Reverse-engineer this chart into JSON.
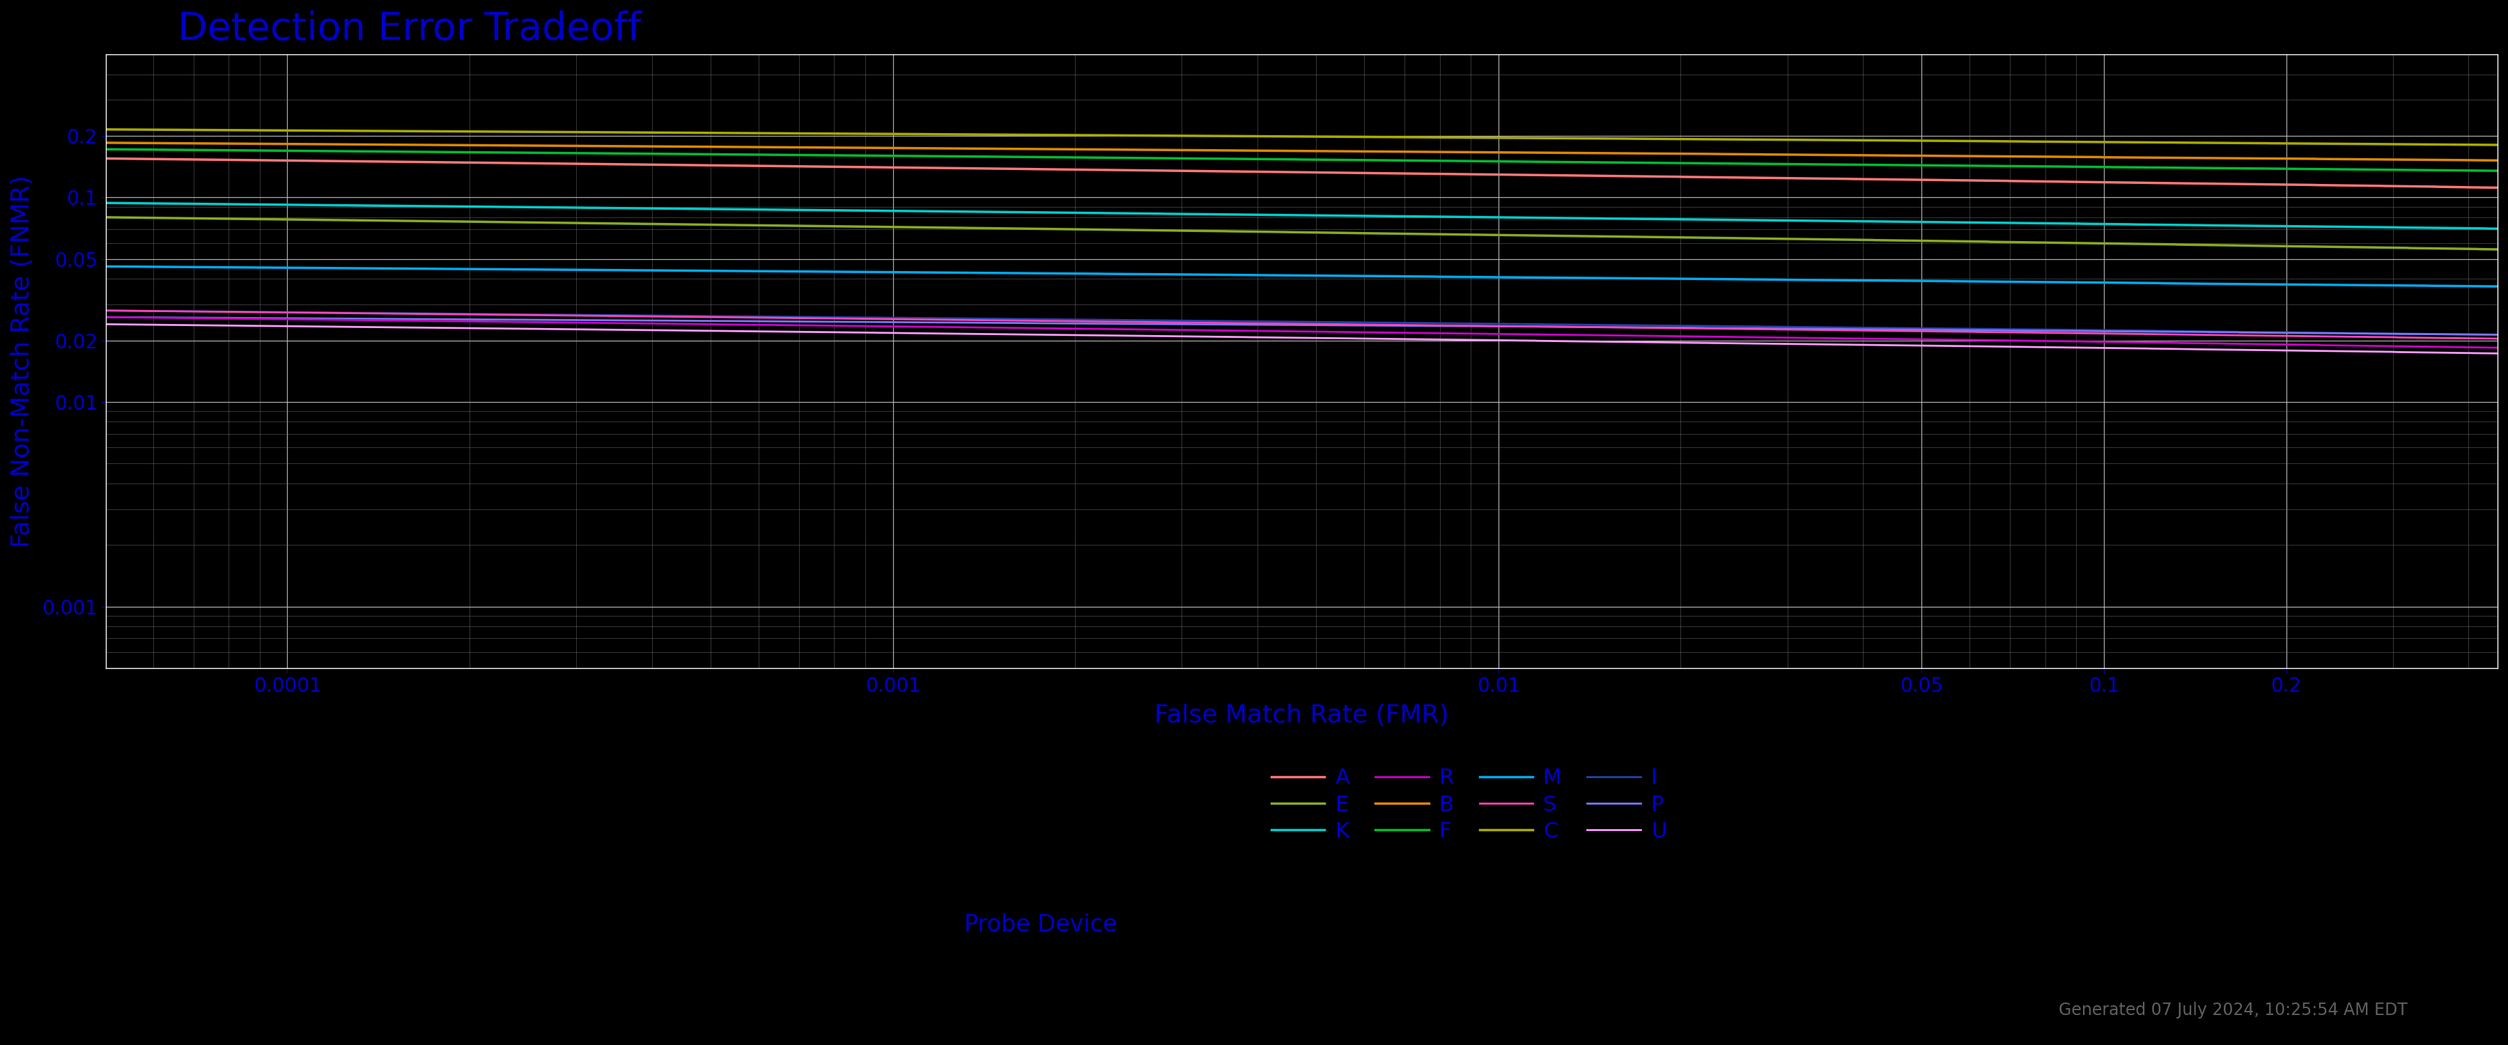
{
  "title": "Detection Error Tradeoff",
  "xlabel": "False Match Rate (FMR)",
  "ylabel": "False Non-Match Rate (FNMR)",
  "xlim_log": [
    -4.3,
    -0.35
  ],
  "ylim_log": [
    -3.3,
    -0.3
  ],
  "xtick_vals": [
    0.0001,
    0.001,
    0.01,
    0.05,
    0.1,
    0.2
  ],
  "xtick_labels": [
    "0.0001",
    "0.001",
    "0.01",
    "0.05",
    "0.1",
    "0.2"
  ],
  "ytick_vals": [
    0.001,
    0.01,
    0.02,
    0.05,
    0.1,
    0.2
  ],
  "ytick_labels": [
    "0.001",
    "0.01",
    "0.02",
    "0.05",
    "0.1",
    "0.2"
  ],
  "title_color": "#0000cc",
  "axis_label_color": "#0000cc",
  "tick_label_color": "#0000cc",
  "background_color": "#000000",
  "grid_major_color": "#c0c0c0",
  "grid_minor_color": "#808080",
  "note": "Generated 07 July 2024, 10:25:54 AM EDT",
  "note_color": "#606060",
  "series": [
    {
      "label": "A",
      "color": "#ff7777",
      "fnmr_start": 0.155,
      "fnmr_end": 0.115,
      "lw": 2.5
    },
    {
      "label": "B",
      "color": "#dd8800",
      "fnmr_start": 0.185,
      "fnmr_end": 0.155,
      "lw": 2.5
    },
    {
      "label": "C",
      "color": "#aaaa00",
      "fnmr_start": 0.215,
      "fnmr_end": 0.185,
      "lw": 2.5
    },
    {
      "label": "E",
      "color": "#88aa22",
      "fnmr_start": 0.08,
      "fnmr_end": 0.058,
      "lw": 2.5
    },
    {
      "label": "F",
      "color": "#00bb33",
      "fnmr_start": 0.172,
      "fnmr_end": 0.138,
      "lw": 2.5
    },
    {
      "label": "I",
      "color": "#2244aa",
      "fnmr_start": 0.028,
      "fnmr_end": 0.022,
      "lw": 2.0
    },
    {
      "label": "K",
      "color": "#00cccc",
      "fnmr_start": 0.094,
      "fnmr_end": 0.072,
      "lw": 2.5
    },
    {
      "label": "M",
      "color": "#00aaee",
      "fnmr_start": 0.046,
      "fnmr_end": 0.038,
      "lw": 2.5
    },
    {
      "label": "P",
      "color": "#7777ff",
      "fnmr_start": 0.026,
      "fnmr_end": 0.022,
      "lw": 2.0
    },
    {
      "label": "R",
      "color": "#cc00cc",
      "fnmr_start": 0.026,
      "fnmr_end": 0.019,
      "lw": 2.0
    },
    {
      "label": "S",
      "color": "#ff44bb",
      "fnmr_start": 0.028,
      "fnmr_end": 0.021,
      "lw": 2.0
    },
    {
      "label": "U",
      "color": "#ff99ff",
      "fnmr_start": 0.024,
      "fnmr_end": 0.018,
      "lw": 2.0
    }
  ],
  "legend_order": [
    "A",
    "E",
    "K",
    "R",
    "B",
    "F",
    "M",
    "S",
    "C",
    "I",
    "P",
    "U"
  ],
  "probe_device_label": "Probe Device"
}
